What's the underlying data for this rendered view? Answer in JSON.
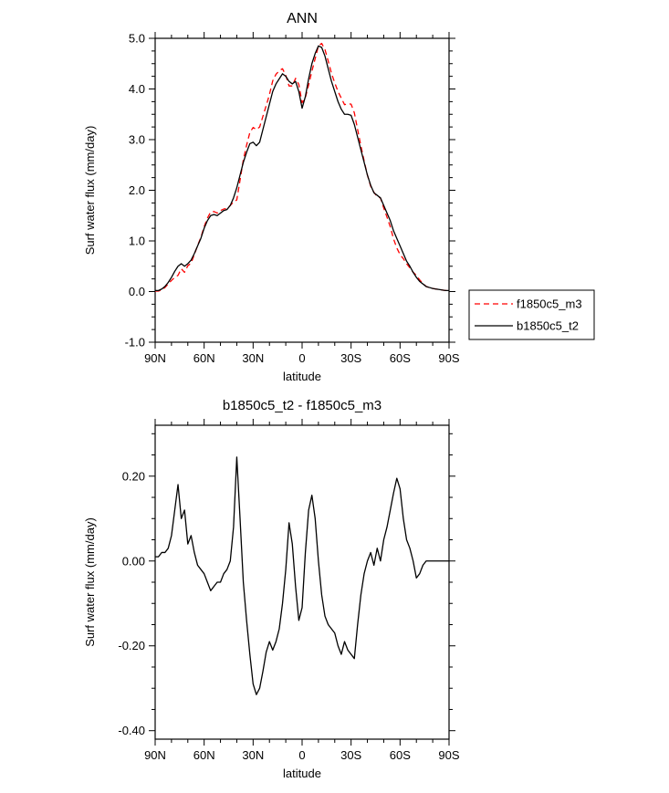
{
  "page": {
    "background": "#ffffff",
    "foreground": "#000000"
  },
  "chart_data": [
    {
      "type": "line",
      "title": "ANN",
      "xlabel": "latitude",
      "ylabel": "Surf water flux (mm/day)",
      "xlim": [
        90,
        -90
      ],
      "ylim": [
        -1.0,
        5.0
      ],
      "grid": false,
      "legend_position": "outside-right-bottom",
      "xticks": [
        {
          "v": 90,
          "label": "90N"
        },
        {
          "v": 60,
          "label": "60N"
        },
        {
          "v": 30,
          "label": "30N"
        },
        {
          "v": 0,
          "label": "0"
        },
        {
          "v": -30,
          "label": "30S"
        },
        {
          "v": -60,
          "label": "60S"
        },
        {
          "v": -90,
          "label": "90S"
        }
      ],
      "x_minor_step": 10,
      "yticks": [
        {
          "v": -1.0,
          "label": "-1.0"
        },
        {
          "v": 0.0,
          "label": "0.0"
        },
        {
          "v": 1.0,
          "label": "1.0"
        },
        {
          "v": 2.0,
          "label": "2.0"
        },
        {
          "v": 3.0,
          "label": "3.0"
        },
        {
          "v": 4.0,
          "label": "4.0"
        },
        {
          "v": 5.0,
          "label": "5.0"
        }
      ],
      "y_minor_step": 0.25,
      "x": [
        90,
        88,
        86,
        84,
        82,
        80,
        78,
        76,
        74,
        72,
        70,
        68,
        66,
        64,
        62,
        60,
        58,
        56,
        54,
        52,
        50,
        48,
        46,
        44,
        42,
        40,
        38,
        36,
        34,
        32,
        30,
        28,
        26,
        24,
        22,
        20,
        18,
        16,
        14,
        12,
        10,
        8,
        6,
        4,
        2,
        0,
        -2,
        -4,
        -6,
        -8,
        -10,
        -12,
        -14,
        -16,
        -18,
        -20,
        -22,
        -24,
        -26,
        -28,
        -30,
        -32,
        -34,
        -36,
        -38,
        -40,
        -42,
        -44,
        -46,
        -48,
        -50,
        -52,
        -54,
        -56,
        -58,
        -60,
        -62,
        -64,
        -66,
        -68,
        -70,
        -72,
        -74,
        -76,
        -78,
        -80,
        -82,
        -84,
        -86,
        -88,
        -90
      ],
      "series": [
        {
          "name": "f1850c5_m3",
          "color": "#ff0000",
          "dash": "6,4",
          "values": [
            0.01,
            0.01,
            0.03,
            0.08,
            0.15,
            0.22,
            0.28,
            0.32,
            0.45,
            0.38,
            0.51,
            0.56,
            0.73,
            0.91,
            1.07,
            1.28,
            1.45,
            1.57,
            1.58,
            1.55,
            1.6,
            1.63,
            1.64,
            1.7,
            1.77,
            1.81,
            2.2,
            2.6,
            2.89,
            3.14,
            3.24,
            3.2,
            3.25,
            3.46,
            3.67,
            3.89,
            4.16,
            4.29,
            4.36,
            4.4,
            4.27,
            4.06,
            4.06,
            4.21,
            4.09,
            3.73,
            3.83,
            4.08,
            4.35,
            4.6,
            4.85,
            4.9,
            4.78,
            4.55,
            4.31,
            4.12,
            3.95,
            3.82,
            3.69,
            3.71,
            3.7,
            3.53,
            3.2,
            2.88,
            2.58,
            2.3,
            2.08,
            1.96,
            1.87,
            1.85,
            1.65,
            1.47,
            1.28,
            1.04,
            0.86,
            0.73,
            0.65,
            0.55,
            0.47,
            0.38,
            0.32,
            0.23,
            0.16,
            0.1,
            0.08,
            0.06,
            0.05,
            0.04,
            0.03,
            0.02,
            0.02
          ]
        },
        {
          "name": "b1850c5_t2",
          "color": "#000000",
          "dash": null,
          "values": [
            0.02,
            0.02,
            0.05,
            0.1,
            0.18,
            0.28,
            0.4,
            0.5,
            0.55,
            0.5,
            0.55,
            0.62,
            0.75,
            0.9,
            1.05,
            1.25,
            1.4,
            1.5,
            1.52,
            1.5,
            1.55,
            1.6,
            1.62,
            1.7,
            1.85,
            2.05,
            2.3,
            2.55,
            2.75,
            2.92,
            2.95,
            2.88,
            2.95,
            3.2,
            3.45,
            3.7,
            3.95,
            4.1,
            4.2,
            4.3,
            4.25,
            4.15,
            4.1,
            4.15,
            3.95,
            3.62,
            3.85,
            4.2,
            4.5,
            4.7,
            4.85,
            4.82,
            4.65,
            4.4,
            4.15,
            3.95,
            3.75,
            3.6,
            3.5,
            3.5,
            3.48,
            3.3,
            3.05,
            2.8,
            2.55,
            2.3,
            2.1,
            1.95,
            1.9,
            1.85,
            1.7,
            1.55,
            1.4,
            1.2,
            1.05,
            0.9,
            0.75,
            0.6,
            0.5,
            0.38,
            0.28,
            0.2,
            0.15,
            0.1,
            0.08,
            0.06,
            0.05,
            0.04,
            0.03,
            0.02,
            0.02
          ]
        }
      ],
      "legend": {
        "entries": [
          "f1850c5_m3",
          "b1850c5_t2"
        ]
      }
    },
    {
      "type": "line",
      "title": "b1850c5_t2 - f1850c5_m3",
      "xlabel": "latitude",
      "ylabel": "Surf water flux (mm/day)",
      "xlim": [
        90,
        -90
      ],
      "ylim": [
        -0.42,
        0.32
      ],
      "grid": false,
      "xticks": [
        {
          "v": 90,
          "label": "90N"
        },
        {
          "v": 60,
          "label": "60N"
        },
        {
          "v": 30,
          "label": "30N"
        },
        {
          "v": 0,
          "label": "0"
        },
        {
          "v": -30,
          "label": "30S"
        },
        {
          "v": -60,
          "label": "60S"
        },
        {
          "v": -90,
          "label": "90S"
        }
      ],
      "x_minor_step": 10,
      "yticks": [
        {
          "v": -0.4,
          "label": "-0.40"
        },
        {
          "v": -0.2,
          "label": "-0.20"
        },
        {
          "v": 0.0,
          "label": "0.00"
        },
        {
          "v": 0.2,
          "label": "0.20"
        }
      ],
      "y_minor_step": 0.05,
      "x": [
        90,
        88,
        86,
        84,
        82,
        80,
        78,
        76,
        74,
        72,
        70,
        68,
        66,
        64,
        62,
        60,
        58,
        56,
        54,
        52,
        50,
        48,
        46,
        44,
        42,
        40,
        38,
        36,
        34,
        32,
        30,
        28,
        26,
        24,
        22,
        20,
        18,
        16,
        14,
        12,
        10,
        8,
        6,
        4,
        2,
        0,
        -2,
        -4,
        -6,
        -8,
        -10,
        -12,
        -14,
        -16,
        -18,
        -20,
        -22,
        -24,
        -26,
        -28,
        -30,
        -32,
        -34,
        -36,
        -38,
        -40,
        -42,
        -44,
        -46,
        -48,
        -50,
        -52,
        -54,
        -56,
        -58,
        -60,
        -62,
        -64,
        -66,
        -68,
        -70,
        -72,
        -74,
        -76,
        -78,
        -80,
        -82,
        -84,
        -86,
        -88,
        -90
      ],
      "series": [
        {
          "name": "b1850c5_t2 - f1850c5_m3",
          "color": "#000000",
          "dash": null,
          "values": [
            0.01,
            0.01,
            0.02,
            0.02,
            0.03,
            0.06,
            0.12,
            0.18,
            0.1,
            0.12,
            0.04,
            0.06,
            0.02,
            -0.01,
            -0.02,
            -0.03,
            -0.05,
            -0.07,
            -0.06,
            -0.05,
            -0.05,
            -0.03,
            -0.02,
            0.0,
            0.08,
            0.245,
            0.1,
            -0.05,
            -0.14,
            -0.22,
            -0.29,
            -0.315,
            -0.3,
            -0.26,
            -0.215,
            -0.19,
            -0.21,
            -0.19,
            -0.16,
            -0.1,
            -0.02,
            0.09,
            0.04,
            -0.06,
            -0.14,
            -0.11,
            0.02,
            0.12,
            0.155,
            0.1,
            0.0,
            -0.08,
            -0.13,
            -0.15,
            -0.16,
            -0.17,
            -0.2,
            -0.22,
            -0.19,
            -0.21,
            -0.22,
            -0.23,
            -0.15,
            -0.08,
            -0.03,
            0.0,
            0.02,
            -0.01,
            0.03,
            0.0,
            0.05,
            0.08,
            0.12,
            0.16,
            0.195,
            0.17,
            0.1,
            0.05,
            0.03,
            0.0,
            -0.04,
            -0.03,
            -0.01,
            0.0,
            0.0,
            0.0,
            0.0,
            0.0,
            0.0,
            0.0,
            0.0
          ]
        }
      ],
      "legend": null
    }
  ]
}
